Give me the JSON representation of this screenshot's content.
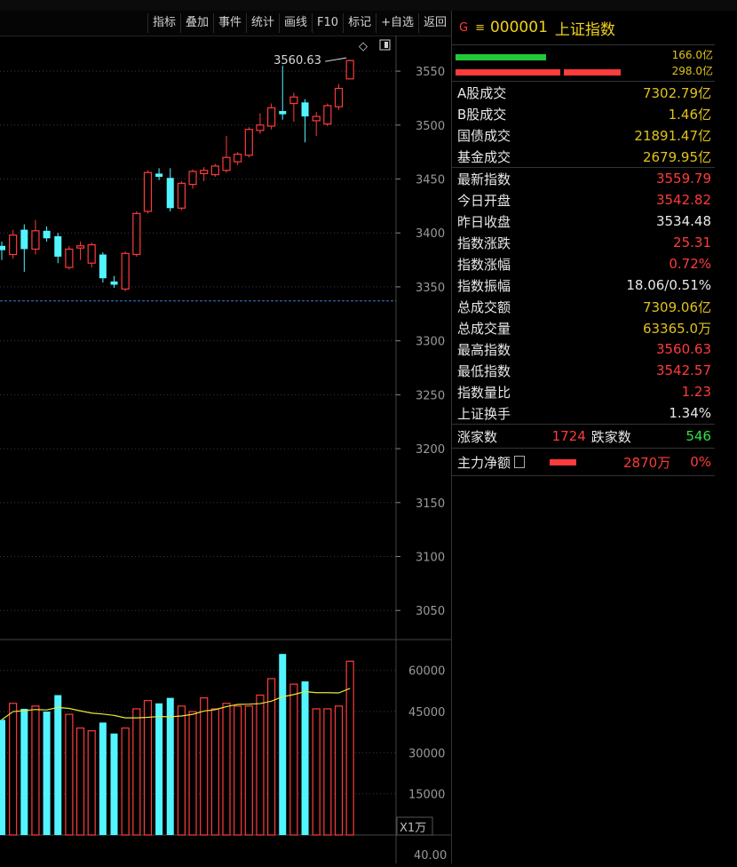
{
  "toolbar": {
    "buttons": [
      "指标",
      "叠加",
      "事件",
      "统计",
      "画线",
      "F10",
      "标记",
      "+自选",
      "返回"
    ]
  },
  "chart": {
    "price_ticks": [
      3550,
      3500,
      3450,
      3400,
      3350,
      3300,
      3250,
      3200,
      3150,
      3100,
      3050
    ],
    "price_range": [
      3023,
      3583
    ],
    "ref_price": 3337,
    "high_label": "3560.63",
    "vol_ticks": [
      60000,
      45000,
      30000,
      15000
    ],
    "vol_max": 68000,
    "vol_unit": "X1万",
    "bottom_tick": "40.00",
    "colors": {
      "up": "#ff3b3b",
      "down": "#52f5ff",
      "ma": "#e8e83a",
      "ref": "#3a7bd5",
      "grid": "#3a3a3a"
    }
  },
  "chart_data": {
    "type": "candlestick",
    "candles": [
      {
        "o": 3388,
        "c": 3384,
        "h": 3392,
        "l": 3375,
        "v": 42000
      },
      {
        "o": 3380,
        "c": 3398,
        "h": 3403,
        "l": 3376,
        "v": 48000
      },
      {
        "o": 3403,
        "c": 3385,
        "h": 3408,
        "l": 3364,
        "v": 46000
      },
      {
        "o": 3385,
        "c": 3402,
        "h": 3412,
        "l": 3380,
        "v": 47000
      },
      {
        "o": 3402,
        "c": 3395,
        "h": 3406,
        "l": 3392,
        "v": 45000
      },
      {
        "o": 3397,
        "c": 3378,
        "h": 3400,
        "l": 3372,
        "v": 51000
      },
      {
        "o": 3368,
        "c": 3385,
        "h": 3388,
        "l": 3366,
        "v": 44000
      },
      {
        "o": 3386,
        "c": 3388,
        "h": 3392,
        "l": 3375,
        "v": 39000
      },
      {
        "o": 3372,
        "c": 3389,
        "h": 3391,
        "l": 3368,
        "v": 38000
      },
      {
        "o": 3380,
        "c": 3358,
        "h": 3382,
        "l": 3354,
        "v": 41000
      },
      {
        "o": 3355,
        "c": 3352,
        "h": 3360,
        "l": 3349,
        "v": 37000
      },
      {
        "o": 3348,
        "c": 3381,
        "h": 3383,
        "l": 3346,
        "v": 39000
      },
      {
        "o": 3380,
        "c": 3418,
        "h": 3420,
        "l": 3378,
        "v": 46000
      },
      {
        "o": 3420,
        "c": 3456,
        "h": 3458,
        "l": 3418,
        "v": 49000
      },
      {
        "o": 3455,
        "c": 3452,
        "h": 3460,
        "l": 3449,
        "v": 48000
      },
      {
        "o": 3451,
        "c": 3423,
        "h": 3460,
        "l": 3420,
        "v": 50000
      },
      {
        "o": 3423,
        "c": 3446,
        "h": 3448,
        "l": 3421,
        "v": 47000
      },
      {
        "o": 3445,
        "c": 3457,
        "h": 3459,
        "l": 3441,
        "v": 45000
      },
      {
        "o": 3455,
        "c": 3458,
        "h": 3461,
        "l": 3448,
        "v": 50000
      },
      {
        "o": 3454,
        "c": 3462,
        "h": 3464,
        "l": 3452,
        "v": 46000
      },
      {
        "o": 3458,
        "c": 3470,
        "h": 3490,
        "l": 3456,
        "v": 48000
      },
      {
        "o": 3466,
        "c": 3473,
        "h": 3475,
        "l": 3463,
        "v": 47000
      },
      {
        "o": 3472,
        "c": 3496,
        "h": 3498,
        "l": 3470,
        "v": 47000
      },
      {
        "o": 3495,
        "c": 3500,
        "h": 3511,
        "l": 3492,
        "v": 51000
      },
      {
        "o": 3499,
        "c": 3516,
        "h": 3520,
        "l": 3496,
        "v": 57000
      },
      {
        "o": 3513,
        "c": 3510,
        "h": 3555,
        "l": 3505,
        "v": 66000
      },
      {
        "o": 3520,
        "c": 3526,
        "h": 3530,
        "l": 3503,
        "v": 55000
      },
      {
        "o": 3521,
        "c": 3508,
        "h": 3524,
        "l": 3484,
        "v": 56000
      },
      {
        "o": 3504,
        "c": 3508,
        "h": 3512,
        "l": 3490,
        "v": 46000
      },
      {
        "o": 3501,
        "c": 3518,
        "h": 3520,
        "l": 3499,
        "v": 46000
      },
      {
        "o": 3517,
        "c": 3534,
        "h": 3538,
        "l": 3514,
        "v": 47000
      },
      {
        "o": 3542.82,
        "c": 3559.79,
        "h": 3560.63,
        "l": 3542.57,
        "v": 63365
      }
    ]
  },
  "panel": {
    "flag": "G",
    "menu_icon": "list-icon",
    "code": "000001",
    "name": "上证指数",
    "bar_top": "166.0亿",
    "bar_bottom": "298.0亿",
    "group1": [
      {
        "label": "A股成交",
        "value": "7302.79亿",
        "color": "y"
      },
      {
        "label": "B股成交",
        "value": "1.46亿",
        "color": "y"
      },
      {
        "label": "国债成交",
        "value": "21891.47亿",
        "color": "y"
      },
      {
        "label": "基金成交",
        "value": "2679.95亿",
        "color": "y"
      }
    ],
    "group2": [
      {
        "label": "最新指数",
        "value": "3559.79",
        "color": "r"
      },
      {
        "label": "今日开盘",
        "value": "3542.82",
        "color": "r"
      },
      {
        "label": "昨日收盘",
        "value": "3534.48",
        "color": "w"
      },
      {
        "label": "指数涨跌",
        "value": "25.31",
        "color": "r"
      },
      {
        "label": "指数涨幅",
        "value": "0.72%",
        "color": "r"
      },
      {
        "label": "指数振幅",
        "value": "18.06/0.51%",
        "color": "w"
      },
      {
        "label": "总成交额",
        "value": "7309.06亿",
        "color": "y"
      },
      {
        "label": "总成交量",
        "value": "63365.0万",
        "color": "y"
      },
      {
        "label": "最高指数",
        "value": "3560.63",
        "color": "r"
      },
      {
        "label": "最低指数",
        "value": "3542.57",
        "color": "r"
      },
      {
        "label": "指数量比",
        "value": "1.23",
        "color": "r"
      },
      {
        "label": "上证换手",
        "value": "1.34%",
        "color": "w"
      }
    ],
    "up_label": "涨家数",
    "up_count": "1724",
    "down_label": "跌家数",
    "down_count": "546",
    "net_label": "主力净额",
    "net_value": "2870万",
    "net_pct": "0%"
  }
}
